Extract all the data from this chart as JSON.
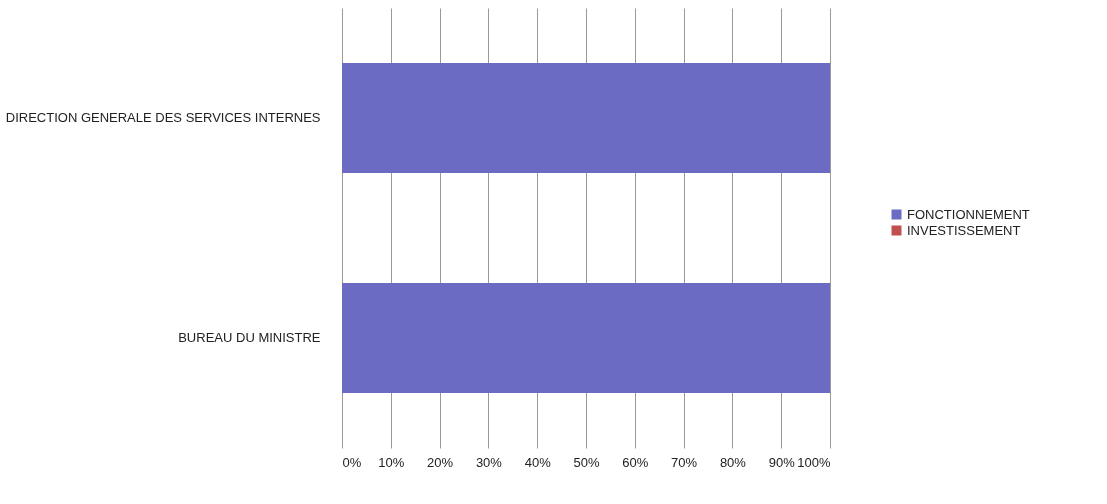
{
  "chart_data": {
    "type": "bar",
    "orientation": "horizontal",
    "stacked": true,
    "categories": [
      "DIRECTION GENERALE DES SERVICES INTERNES",
      "BUREAU DU MINISTRE"
    ],
    "series": [
      {
        "name": "FONCTIONNEMENT",
        "color": "#6b6bc4",
        "values": [
          100,
          100
        ]
      },
      {
        "name": "INVESTISSEMENT",
        "color": "#c0504d",
        "values": [
          0,
          0
        ]
      }
    ],
    "xlim": [
      0,
      100
    ],
    "xticks": [
      {
        "value": 0,
        "label": "0%"
      },
      {
        "value": 10,
        "label": "10%"
      },
      {
        "value": 20,
        "label": "20%"
      },
      {
        "value": 30,
        "label": "30%"
      },
      {
        "value": 40,
        "label": "40%"
      },
      {
        "value": 50,
        "label": "50%"
      },
      {
        "value": 60,
        "label": "60%"
      },
      {
        "value": 70,
        "label": "70%"
      },
      {
        "value": 80,
        "label": "80%"
      },
      {
        "value": 90,
        "label": "90%"
      },
      {
        "value": 100,
        "label": "100%"
      }
    ],
    "grid": "x",
    "legend": "right"
  }
}
